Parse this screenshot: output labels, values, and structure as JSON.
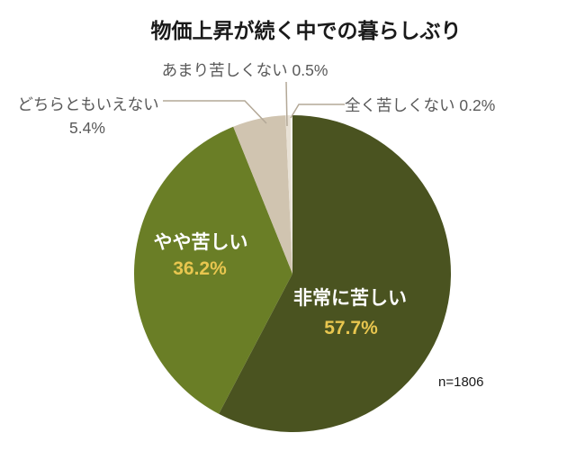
{
  "chart_data": {
    "type": "pie",
    "title": "物価上昇が続く中での暮らしぶり",
    "sample_label": "n=1806",
    "start_angle_deg": 0,
    "direction": "clockwise",
    "legend_position": "none",
    "slices": [
      {
        "label": "非常に苦しい",
        "value": 57.7,
        "percent_text": "57.7%",
        "color": "#4a5320",
        "label_style": "inside"
      },
      {
        "label": "やや苦しい",
        "value": 36.2,
        "percent_text": "36.2%",
        "color": "#6a7e26",
        "label_style": "inside"
      },
      {
        "label": "どちらともいえない",
        "value": 5.4,
        "percent_text": "5.4%",
        "color": "#d0c4b0",
        "label_style": "callout-left"
      },
      {
        "label": "あまり苦しくない",
        "value": 0.5,
        "percent_text": "0.5%",
        "color": "#e8e1d5",
        "label_style": "callout-top"
      },
      {
        "label": "全く苦しくない",
        "value": 0.2,
        "percent_text": "0.2%",
        "color": "#f6f3ed",
        "label_style": "callout-right"
      }
    ],
    "colors": {
      "inside_label": "#ffffff",
      "percent_label": "#e8c64f",
      "callout_text": "#595959",
      "leader_line": "#b3a897",
      "title": "#1a1a1a",
      "background": "#ffffff"
    }
  }
}
